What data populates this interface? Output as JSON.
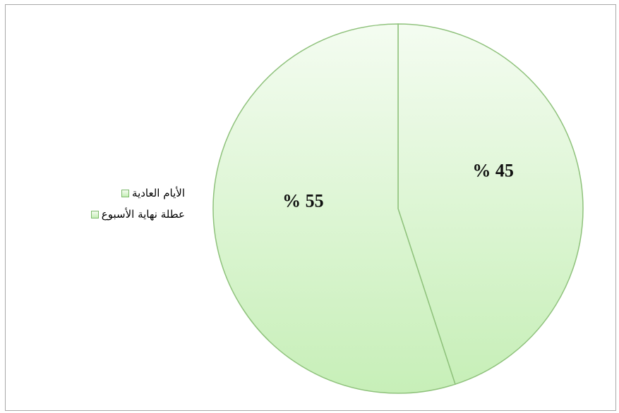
{
  "chart_data": {
    "type": "pie",
    "slices": [
      {
        "name": "الأيام العادية",
        "value": 45,
        "label": "% 45"
      },
      {
        "name": "عطلة نهاية الأسبوع",
        "value": 55,
        "label": "% 55"
      }
    ],
    "start_angle_deg": 0,
    "direction": "clockwise",
    "legend_position": "left",
    "colors": {
      "fill_top": "#f4fcf1",
      "fill_bottom": "#c7efb8",
      "stroke": "#8fc27c"
    },
    "title": ""
  }
}
